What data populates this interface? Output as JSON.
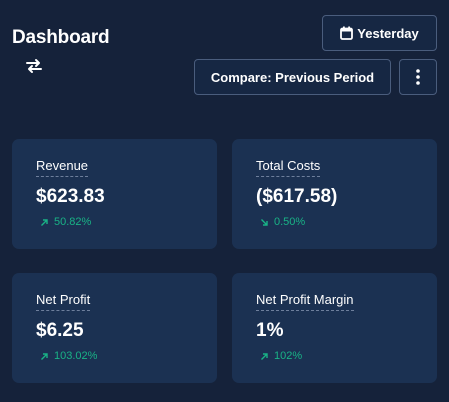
{
  "header": {
    "title": "Dashboard",
    "date_button_label": "Yesterday",
    "compare_button_label": "Compare: Previous Period"
  },
  "colors": {
    "background": "#15223a",
    "card": "#1b3152",
    "positive": "#19b386",
    "border": "#4a5d7d"
  },
  "metrics": [
    {
      "label": "Revenue",
      "value": "$623.83",
      "change": "50.82%",
      "direction": "up"
    },
    {
      "label": "Total Costs",
      "value": "($617.58)",
      "change": "0.50%",
      "direction": "down"
    },
    {
      "label": "Net Profit",
      "value": "$6.25",
      "change": "103.02%",
      "direction": "up"
    },
    {
      "label": "Net Profit Margin",
      "value": "1%",
      "change": "102%",
      "direction": "up"
    }
  ]
}
